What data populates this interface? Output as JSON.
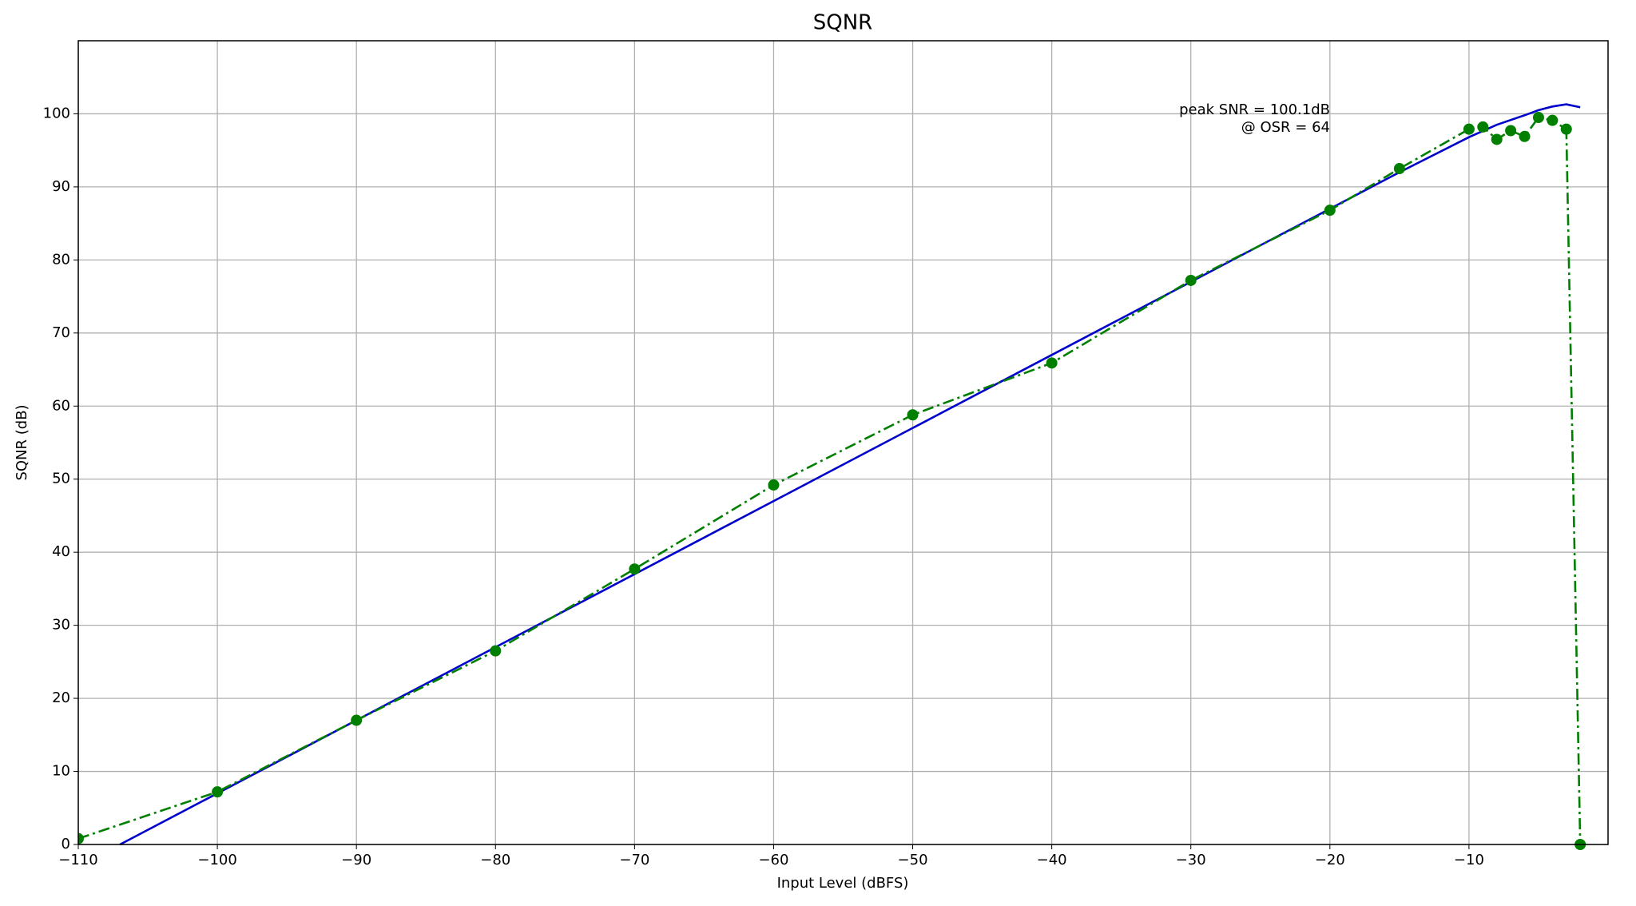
{
  "chart_data": {
    "type": "line",
    "title": "SQNR",
    "xlabel": "Input Level (dBFS)",
    "ylabel": "SQNR (dB)",
    "annotation": [
      "peak SNR = 100.1dB",
      "@ OSR = 64"
    ],
    "xlim": [
      -110,
      0
    ],
    "ylim": [
      0,
      110
    ],
    "xticks": [
      {
        "value": -110,
        "label": "−110"
      },
      {
        "value": -100,
        "label": "−100"
      },
      {
        "value": -90,
        "label": "−90"
      },
      {
        "value": -80,
        "label": "−80"
      },
      {
        "value": -70,
        "label": "−70"
      },
      {
        "value": -60,
        "label": "−60"
      },
      {
        "value": -50,
        "label": "−50"
      },
      {
        "value": -40,
        "label": "−40"
      },
      {
        "value": -30,
        "label": "−30"
      },
      {
        "value": -20,
        "label": "−20"
      },
      {
        "value": -10,
        "label": "−10"
      }
    ],
    "yticks": [
      0,
      10,
      20,
      30,
      40,
      50,
      60,
      70,
      80,
      90,
      100
    ],
    "grid": true,
    "series": [
      {
        "color": "#0000cc",
        "style": "solid",
        "markers": false,
        "x": [
          -107,
          -20,
          -15,
          -10,
          -8,
          -6,
          -5,
          -4,
          -3,
          -2
        ],
        "values": [
          0,
          87,
          92,
          96.8,
          98.5,
          99.8,
          100.5,
          101,
          101.3,
          100.9
        ]
      },
      {
        "color": "#007f00",
        "style": "dashdot",
        "markers": true,
        "x": [
          -110,
          -100,
          -90,
          -80,
          -70,
          -60,
          -50,
          -40,
          -30,
          -20,
          -15,
          -10,
          -9,
          -8,
          -7,
          -6,
          -5,
          -4,
          -3,
          -2
        ],
        "values": [
          0.8,
          7.2,
          17,
          26.5,
          37.7,
          49.2,
          58.8,
          65.9,
          77.2,
          86.8,
          92.5,
          97.9,
          98.2,
          96.5,
          97.7,
          96.9,
          99.5,
          99.1,
          97.9,
          0
        ]
      }
    ]
  }
}
